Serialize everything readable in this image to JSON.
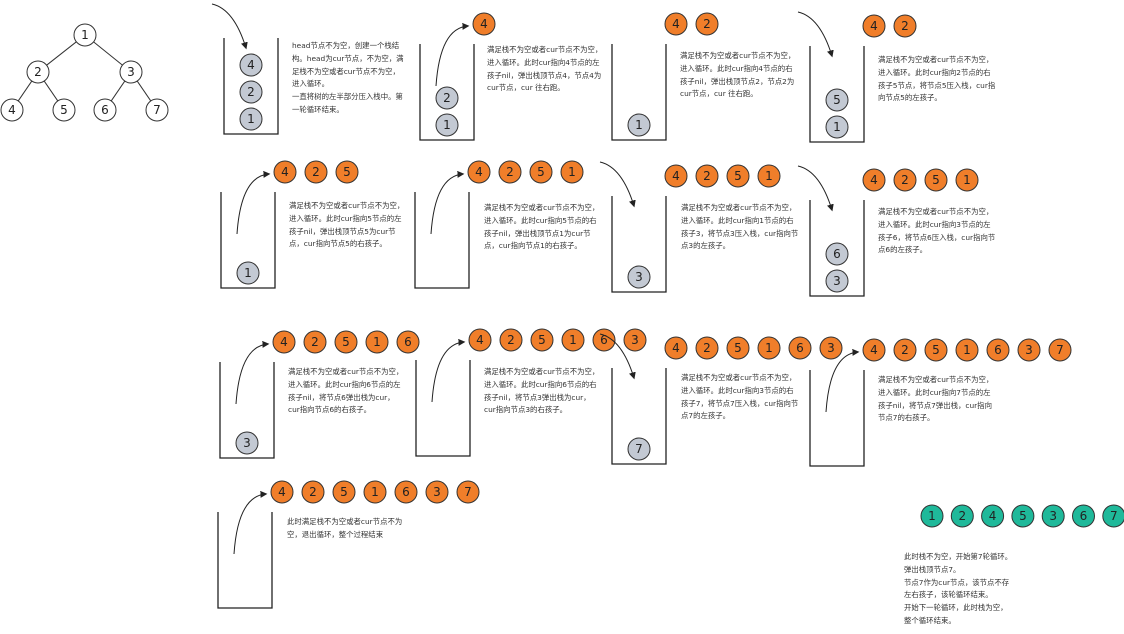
{
  "colors": {
    "output_node": "#F07E2A",
    "stack_node": "#C3C9D3",
    "final_node": "#1FB99A",
    "tree_node": "#FFFFFF",
    "stroke": "#333333",
    "text": "#333333"
  },
  "tree": {
    "nodes": [
      "1",
      "2",
      "3",
      "4",
      "5",
      "6",
      "7"
    ],
    "edges": [
      [
        "1",
        "2"
      ],
      [
        "1",
        "3"
      ],
      [
        "2",
        "4"
      ],
      [
        "2",
        "5"
      ],
      [
        "3",
        "6"
      ],
      [
        "3",
        "7"
      ]
    ]
  },
  "steps": [
    {
      "id": "s1",
      "output": [],
      "stack": [
        "1",
        "2",
        "4"
      ],
      "arrow": "down",
      "text": "head节点不为空，创建一个栈结构。head为cur节点，不为空，满足栈不为空或者cur节点不为空，进入循环。\n一直将树的左半部分压入栈中。第一轮循环结束。"
    },
    {
      "id": "s2",
      "output": [
        "4"
      ],
      "stack": [
        "1",
        "2"
      ],
      "arrow": "up",
      "text": "满足栈不为空或者cur节点不为空，进入循环。此时cur指向4节点的左孩子nil，弹出栈顶节点4，节点4为cur节点，cur 往右跑。"
    },
    {
      "id": "s3",
      "output": [
        "4",
        "2"
      ],
      "stack": [
        "1"
      ],
      "arrow": "none",
      "text": "满足栈不为空或者cur节点不为空，进入循环。此时cur指向4节点的右孩子nil，弹出栈顶节点2，节点2为cur节点，cur 往右跑。"
    },
    {
      "id": "s4",
      "output": [
        "4",
        "2"
      ],
      "stack": [
        "1",
        "5"
      ],
      "arrow": "down",
      "text": "满足栈不为空或者cur节点不为空，进入循环。此时cur指向2节点的右孩子5节点，将节点5压入栈，cur指向节点5的左孩子。"
    },
    {
      "id": "s5",
      "output": [
        "4",
        "2",
        "5"
      ],
      "stack": [
        "1"
      ],
      "arrow": "up",
      "text": "满足栈不为空或者cur节点不为空，进入循环。此时cur指向5节点的左孩子nil，弹出栈顶节点5为cur节点，cur指向节点5的右孩子。"
    },
    {
      "id": "s6",
      "output": [
        "4",
        "2",
        "5",
        "1"
      ],
      "stack": [],
      "arrow": "up",
      "text": "满足栈不为空或者cur节点不为空，进入循环。此时cur指向5节点的右孩子nil，弹出栈顶节点1为cur节点，cur指向节点1的右孩子。"
    },
    {
      "id": "s7",
      "output": [
        "4",
        "2",
        "5",
        "1"
      ],
      "stack": [
        "3"
      ],
      "arrow": "down",
      "text": "满足栈不为空或者cur节点不为空，进入循环。此时cur指向1节点的右孩子3，将节点3压入栈，cur指向节点3的左孩子。"
    },
    {
      "id": "s8",
      "output": [
        "4",
        "2",
        "5",
        "1"
      ],
      "stack": [
        "3",
        "6"
      ],
      "arrow": "down",
      "text": "满足栈不为空或者cur节点不为空，进入循环。此时cur指向3节点的左孩子6，将节点6压入栈，cur指向节点6的左孩子。"
    },
    {
      "id": "s9",
      "output": [
        "4",
        "2",
        "5",
        "1",
        "6"
      ],
      "stack": [
        "3"
      ],
      "arrow": "up",
      "text": "满足栈不为空或者cur节点不为空，进入循环。此时cur指向6节点的左孩子nil，将节点6弹出栈为cur，cur指向节点6的右孩子。"
    },
    {
      "id": "s10",
      "output": [
        "4",
        "2",
        "5",
        "1",
        "6",
        "3"
      ],
      "stack": [],
      "arrow": "up",
      "text": "满足栈不为空或者cur节点不为空，进入循环。此时cur指向6节点的右孩子nil，将节点3弹出栈为cur，cur指向节点3的右孩子。"
    },
    {
      "id": "s11",
      "output": [
        "4",
        "2",
        "5",
        "1",
        "6",
        "3"
      ],
      "stack": [
        "7"
      ],
      "arrow": "down",
      "text": "满足栈不为空或者cur节点不为空，进入循环。此时cur指向3节点的右孩子7，将节点7压入栈，cur指向节点7的左孩子。"
    },
    {
      "id": "s12",
      "output": [
        "4",
        "2",
        "5",
        "1",
        "6",
        "3",
        "7"
      ],
      "stack": [],
      "arrow": "up",
      "text": "满足栈不为空或者cur节点不为空，进入循环。此时cur指向7节点的左孩子nil，将节点7弹出栈，cur指向节点7的右孩子。"
    },
    {
      "id": "s13",
      "output": [
        "4",
        "2",
        "5",
        "1",
        "6",
        "3",
        "7"
      ],
      "stack": [],
      "arrow": "up",
      "text": "此时满足栈不为空或者cur节点不为空，退出循环，整个过程结束"
    }
  ],
  "final": {
    "nodes": [
      "1",
      "2",
      "4",
      "5",
      "3",
      "6",
      "7"
    ],
    "lines": [
      "此时栈不为空，开始第7轮循环。",
      "弹出栈顶节点7。",
      "节点7作为cur节点，该节点不存",
      "左右孩子，该轮循环结束。",
      "开始下一轮循环，此时栈为空，",
      "整个循环结束。"
    ]
  }
}
